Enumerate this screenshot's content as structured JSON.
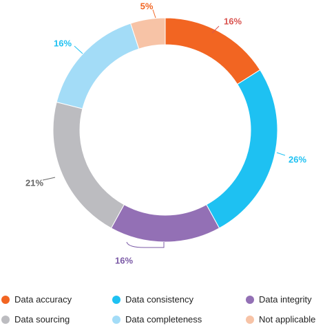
{
  "chart_data": {
    "type": "pie",
    "style": "donut",
    "title": "",
    "slices": [
      {
        "label": "Data accuracy",
        "value": 16,
        "display": "16%",
        "color": "#f26522",
        "label_color": "#d9534f"
      },
      {
        "label": "Data consistency",
        "value": 26,
        "display": "26%",
        "color": "#1ec1f2",
        "label_color": "#1ec1f2"
      },
      {
        "label": "Data integrity",
        "value": 16,
        "display": "16%",
        "color": "#9370b5",
        "label_color": "#7b5aa6"
      },
      {
        "label": "Data sourcing",
        "value": 21,
        "display": "21%",
        "color": "#bcbcc0",
        "label_color": "#666666"
      },
      {
        "label": "Data completeness",
        "value": 16,
        "display": "16%",
        "color": "#a3dcf7",
        "label_color": "#1ec1f2"
      },
      {
        "label": "Not applicable",
        "value": 5,
        "display": "5%",
        "color": "#f7c3a6",
        "label_color": "#f26522"
      }
    ],
    "legend_position": "bottom"
  },
  "legend": [
    {
      "label": "Data accuracy",
      "color": "#f26522"
    },
    {
      "label": "Data consistency",
      "color": "#1ec1f2"
    },
    {
      "label": "Data integrity",
      "color": "#9370b5"
    },
    {
      "label": "Data sourcing",
      "color": "#bcbcc0"
    },
    {
      "label": "Data completeness",
      "color": "#a3dcf7"
    },
    {
      "label": "Not applicable",
      "color": "#f7c3a6"
    }
  ]
}
